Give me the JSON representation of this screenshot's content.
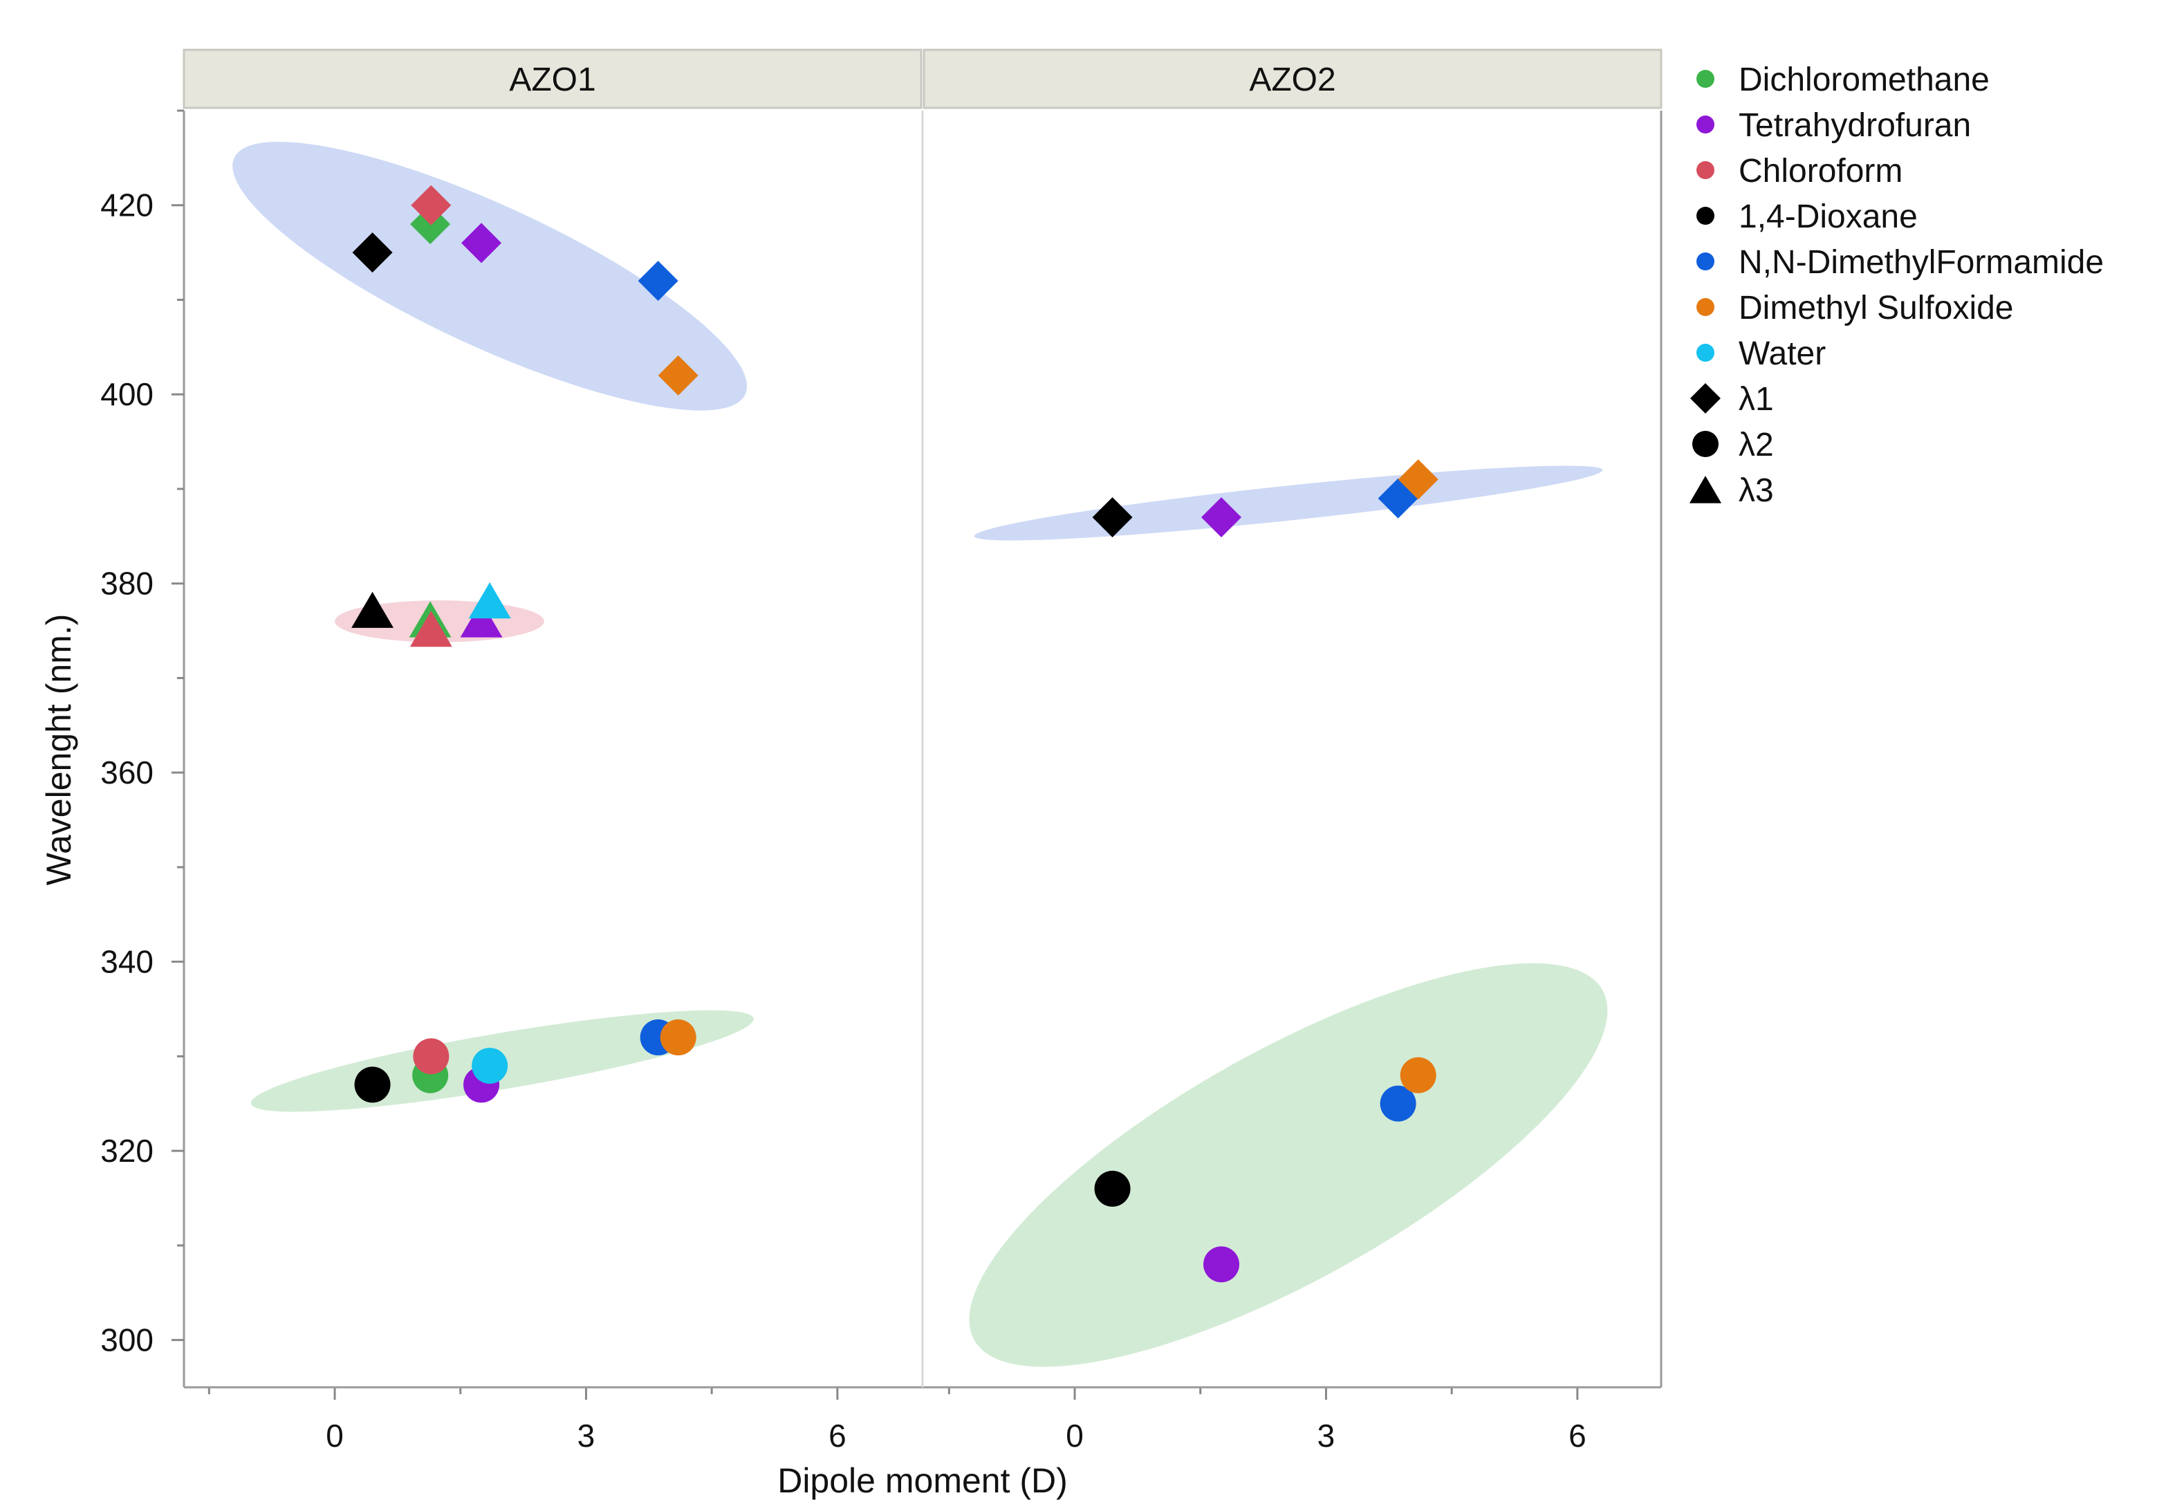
{
  "chart_data": {
    "type": "scatter",
    "xlabel": "Dipole moment (D)",
    "ylabel": "Wavelenght (nm.)",
    "xlim": [
      -1.8,
      7.0
    ],
    "ylim": [
      295,
      430
    ],
    "x_ticks": [
      "0",
      "3",
      "6"
    ],
    "x_tick_values": [
      0,
      3,
      6
    ],
    "y_ticks": [
      "300",
      "320",
      "340",
      "360",
      "380",
      "400",
      "420"
    ],
    "y_tick_values": [
      300,
      320,
      340,
      360,
      380,
      400,
      420
    ],
    "panels": [
      {
        "label": "AZO1",
        "ellipses": [
          {
            "group": "λ1",
            "color": "#cdd9f5",
            "points": [
              [
                -1.2,
                425
              ],
              [
                4.9,
                400
              ]
            ]
          },
          {
            "group": "λ3",
            "color": "#f5d3d9",
            "points": [
              [
                0,
                376
              ],
              [
                2.5,
                376
              ]
            ]
          },
          {
            "group": "λ2",
            "color": "#d2ebd5",
            "points": [
              [
                -1.0,
                325
              ],
              [
                5.0,
                334
              ]
            ]
          }
        ],
        "points": [
          {
            "solvent": "1,4-Dioxane",
            "series": "λ1",
            "x": 0.45,
            "y": 415
          },
          {
            "solvent": "Dichloromethane",
            "series": "λ1",
            "x": 1.14,
            "y": 418
          },
          {
            "solvent": "Chloroform",
            "series": "λ1",
            "x": 1.15,
            "y": 420
          },
          {
            "solvent": "Tetrahydrofuran",
            "series": "λ1",
            "x": 1.75,
            "y": 416
          },
          {
            "solvent": "N,N-DimethylFormamide",
            "series": "λ1",
            "x": 3.86,
            "y": 412
          },
          {
            "solvent": "Dimethyl Sulfoxide",
            "series": "λ1",
            "x": 4.1,
            "y": 402
          },
          {
            "solvent": "1,4-Dioxane",
            "series": "λ3",
            "x": 0.45,
            "y": 377
          },
          {
            "solvent": "Dichloromethane",
            "series": "λ3",
            "x": 1.14,
            "y": 376
          },
          {
            "solvent": "Chloroform",
            "series": "λ3",
            "x": 1.15,
            "y": 375
          },
          {
            "solvent": "Tetrahydrofuran",
            "series": "λ3",
            "x": 1.75,
            "y": 376
          },
          {
            "solvent": "Water",
            "series": "λ3",
            "x": 1.85,
            "y": 378
          },
          {
            "solvent": "1,4-Dioxane",
            "series": "λ2",
            "x": 0.45,
            "y": 327
          },
          {
            "solvent": "Dichloromethane",
            "series": "λ2",
            "x": 1.14,
            "y": 328
          },
          {
            "solvent": "Chloroform",
            "series": "λ2",
            "x": 1.15,
            "y": 330
          },
          {
            "solvent": "Tetrahydrofuran",
            "series": "λ2",
            "x": 1.75,
            "y": 327
          },
          {
            "solvent": "Water",
            "series": "λ2",
            "x": 1.85,
            "y": 329
          },
          {
            "solvent": "N,N-DimethylFormamide",
            "series": "λ2",
            "x": 3.86,
            "y": 332
          },
          {
            "solvent": "Dimethyl Sulfoxide",
            "series": "λ2",
            "x": 4.1,
            "y": 332
          }
        ]
      },
      {
        "label": "AZO2",
        "ellipses": [
          {
            "group": "λ1",
            "color": "#cdd9f5",
            "points": [
              [
                -1.2,
                385
              ],
              [
                6.3,
                392
              ]
            ]
          },
          {
            "group": "λ2",
            "color": "#d2ebd5",
            "points": [
              [
                -1.2,
                300
              ],
              [
                6.3,
                337
              ]
            ]
          }
        ],
        "points": [
          {
            "solvent": "1,4-Dioxane",
            "series": "λ1",
            "x": 0.45,
            "y": 387
          },
          {
            "solvent": "Tetrahydrofuran",
            "series": "λ1",
            "x": 1.75,
            "y": 387
          },
          {
            "solvent": "N,N-DimethylFormamide",
            "series": "λ1",
            "x": 3.86,
            "y": 389
          },
          {
            "solvent": "Dimethyl Sulfoxide",
            "series": "λ1",
            "x": 4.1,
            "y": 391
          },
          {
            "solvent": "1,4-Dioxane",
            "series": "λ2",
            "x": 0.45,
            "y": 316
          },
          {
            "solvent": "Tetrahydrofuran",
            "series": "λ2",
            "x": 1.75,
            "y": 308
          },
          {
            "solvent": "N,N-DimethylFormamide",
            "series": "λ2",
            "x": 3.86,
            "y": 325
          },
          {
            "solvent": "Dimethyl Sulfoxide",
            "series": "λ2",
            "x": 4.1,
            "y": 328
          }
        ]
      }
    ],
    "legend": {
      "placement": "right",
      "entries": [
        {
          "label": "Dichloromethane",
          "marker": "dot",
          "color": "#3cb44b"
        },
        {
          "label": "Tetrahydrofuran",
          "marker": "dot",
          "color": "#8f17d6"
        },
        {
          "label": "Chloroform",
          "marker": "dot",
          "color": "#d64e5e"
        },
        {
          "label": "1,4-Dioxane",
          "marker": "dot",
          "color": "#000000"
        },
        {
          "label": "N,N-DimethylFormamide",
          "marker": "dot",
          "color": "#0f5fdc"
        },
        {
          "label": "Dimethyl Sulfoxide",
          "marker": "dot",
          "color": "#e57a11"
        },
        {
          "label": "Water",
          "marker": "dot",
          "color": "#14c1ef"
        },
        {
          "label": "λ1",
          "marker": "diamond",
          "color": "#000000"
        },
        {
          "label": "λ2",
          "marker": "circle",
          "color": "#000000"
        },
        {
          "label": "λ3",
          "marker": "triangle",
          "color": "#000000"
        }
      ]
    }
  }
}
